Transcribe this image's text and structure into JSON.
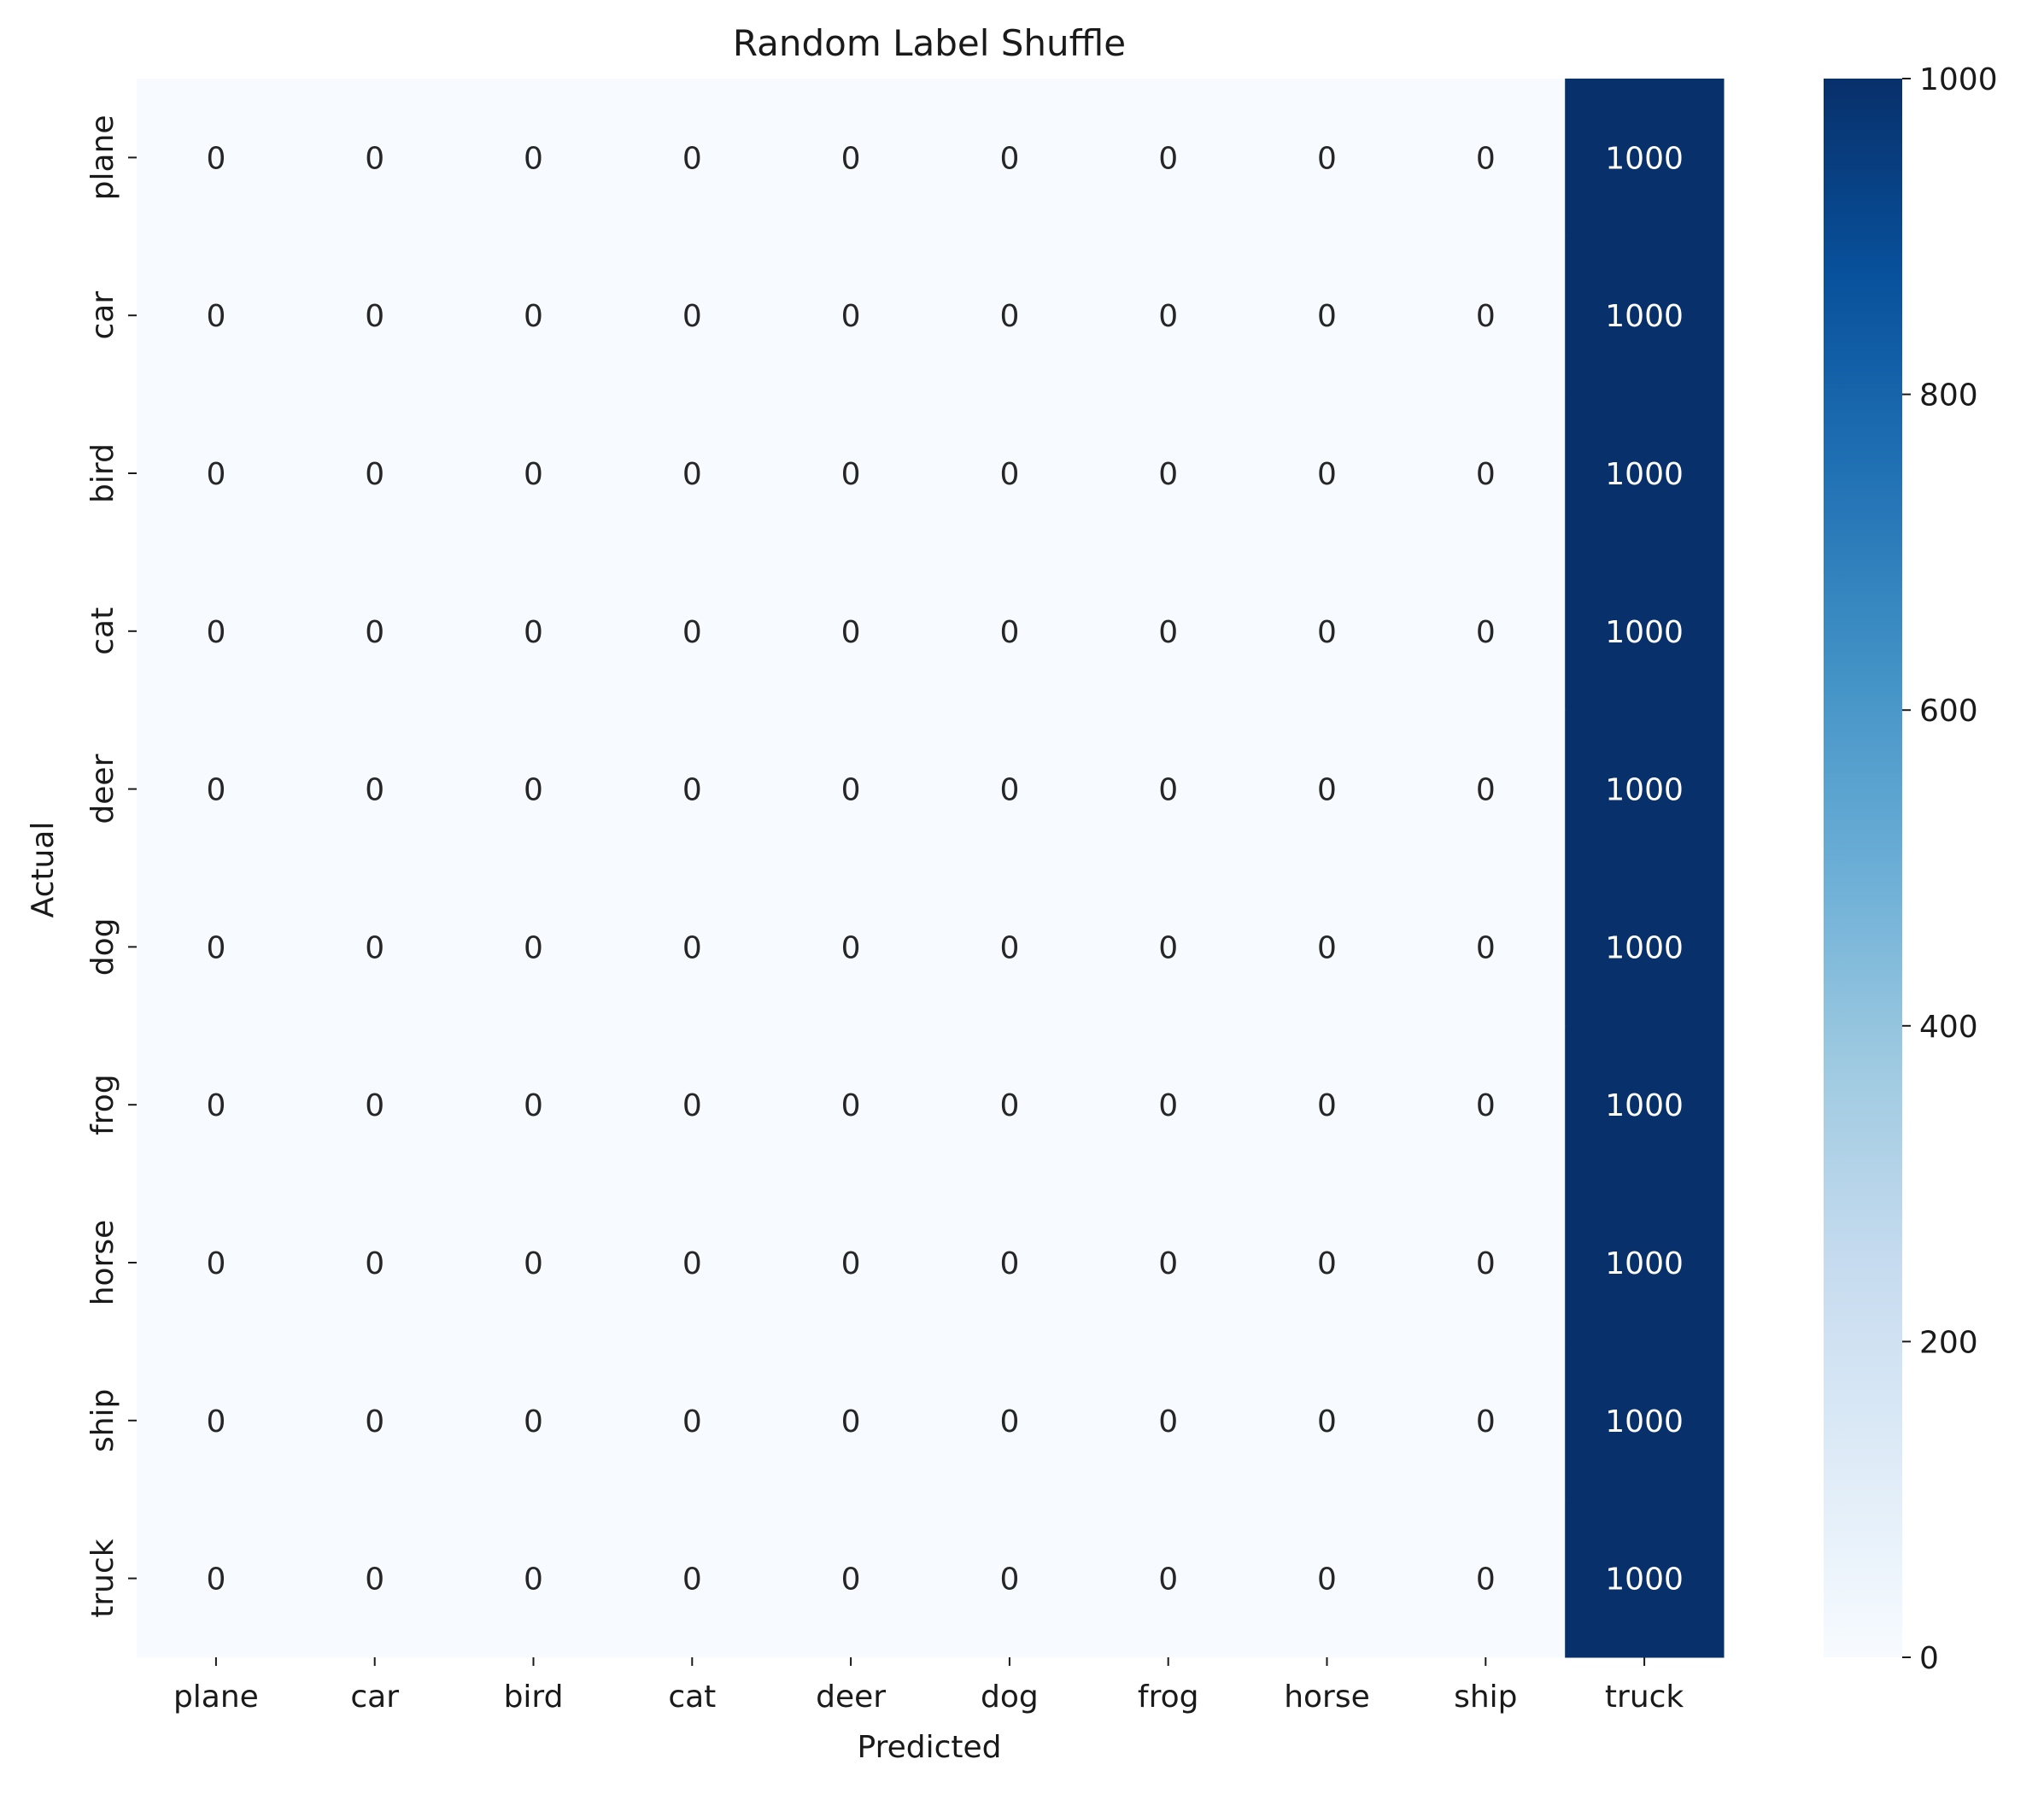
{
  "chart_data": {
    "type": "heatmap",
    "title": "Random Label Shuffle",
    "xlabel": "Predicted",
    "ylabel": "Actual",
    "x_categories": [
      "plane",
      "car",
      "bird",
      "cat",
      "deer",
      "dog",
      "frog",
      "horse",
      "ship",
      "truck"
    ],
    "y_categories": [
      "plane",
      "car",
      "bird",
      "cat",
      "deer",
      "dog",
      "frog",
      "horse",
      "ship",
      "truck"
    ],
    "values": [
      [
        0,
        0,
        0,
        0,
        0,
        0,
        0,
        0,
        0,
        1000
      ],
      [
        0,
        0,
        0,
        0,
        0,
        0,
        0,
        0,
        0,
        1000
      ],
      [
        0,
        0,
        0,
        0,
        0,
        0,
        0,
        0,
        0,
        1000
      ],
      [
        0,
        0,
        0,
        0,
        0,
        0,
        0,
        0,
        0,
        1000
      ],
      [
        0,
        0,
        0,
        0,
        0,
        0,
        0,
        0,
        0,
        1000
      ],
      [
        0,
        0,
        0,
        0,
        0,
        0,
        0,
        0,
        0,
        1000
      ],
      [
        0,
        0,
        0,
        0,
        0,
        0,
        0,
        0,
        0,
        1000
      ],
      [
        0,
        0,
        0,
        0,
        0,
        0,
        0,
        0,
        0,
        1000
      ],
      [
        0,
        0,
        0,
        0,
        0,
        0,
        0,
        0,
        0,
        1000
      ],
      [
        0,
        0,
        0,
        0,
        0,
        0,
        0,
        0,
        0,
        1000
      ]
    ],
    "colormap": "Blues",
    "color_range": [
      0,
      1000
    ],
    "colorbar_ticks": [
      0,
      200,
      400,
      600,
      800,
      1000
    ],
    "colorbar_position": "right",
    "grid": false
  }
}
